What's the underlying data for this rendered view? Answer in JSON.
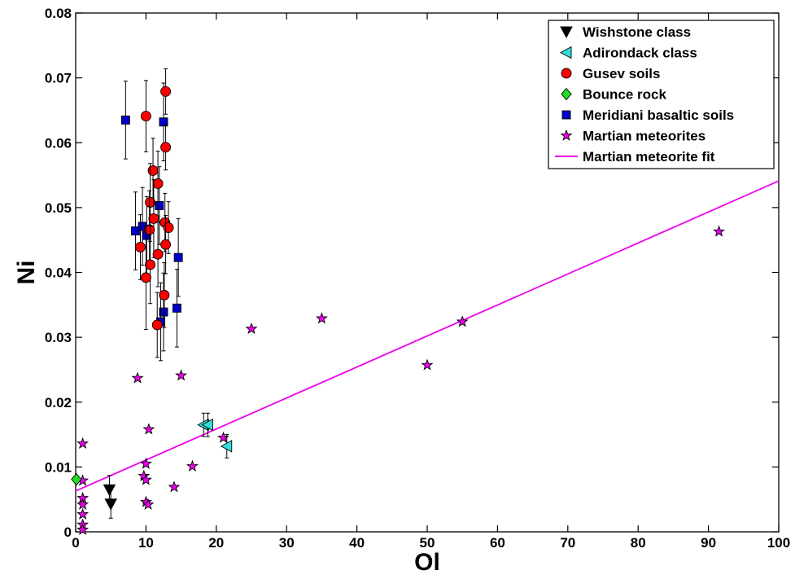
{
  "chart_data": {
    "type": "scatter",
    "xlabel": "Ol",
    "ylabel": "Ni",
    "xlim": [
      0,
      100
    ],
    "ylim": [
      0,
      0.08
    ],
    "xticks": [
      0,
      10,
      20,
      30,
      40,
      50,
      60,
      70,
      80,
      90,
      100
    ],
    "yticks": [
      0,
      0.01,
      0.02,
      0.03,
      0.04,
      0.05,
      0.06,
      0.07,
      0.08
    ],
    "xtick_labels": [
      "0",
      "10",
      "20",
      "30",
      "40",
      "50",
      "60",
      "70",
      "80",
      "90",
      "100"
    ],
    "ytick_labels": [
      "0",
      "0.01",
      "0.02",
      "0.03",
      "0.04",
      "0.05",
      "0.06",
      "0.07",
      "0.08"
    ],
    "grid": false,
    "legend_position": "top-right",
    "series": [
      {
        "name": "Wishstone class",
        "marker": "triangle-down",
        "color": "#000000",
        "points": [
          {
            "x": 4.8,
            "y": 0.0065,
            "err": 0.0022
          },
          {
            "x": 5.0,
            "y": 0.0043,
            "err": 0.0022
          }
        ]
      },
      {
        "name": "Adirondack class",
        "marker": "triangle-left",
        "color": "#33dddd",
        "points": [
          {
            "x": 18.2,
            "y": 0.0165,
            "err": 0.0018
          },
          {
            "x": 18.8,
            "y": 0.0165,
            "err": 0.0018
          },
          {
            "x": 21.5,
            "y": 0.0132,
            "err": 0.0018
          }
        ]
      },
      {
        "name": "Gusev soils",
        "marker": "circle",
        "color": "#ff0000",
        "points": [
          {
            "x": 10.0,
            "y": 0.0641,
            "err": 0.0055
          },
          {
            "x": 12.8,
            "y": 0.0679,
            "err": 0.0035
          },
          {
            "x": 12.8,
            "y": 0.0593,
            "err": 0.0035
          },
          {
            "x": 11.0,
            "y": 0.0557,
            "err": 0.005
          },
          {
            "x": 11.7,
            "y": 0.0537,
            "err": 0.005
          },
          {
            "x": 10.6,
            "y": 0.0508,
            "err": 0.006
          },
          {
            "x": 11.1,
            "y": 0.0483,
            "err": 0.006
          },
          {
            "x": 12.7,
            "y": 0.0477,
            "err": 0.0045
          },
          {
            "x": 13.2,
            "y": 0.0469,
            "err": 0.004
          },
          {
            "x": 10.5,
            "y": 0.0466,
            "err": 0.006
          },
          {
            "x": 9.2,
            "y": 0.0439,
            "err": 0.005
          },
          {
            "x": 12.8,
            "y": 0.0443,
            "err": 0.0045
          },
          {
            "x": 11.7,
            "y": 0.0428,
            "err": 0.005
          },
          {
            "x": 10.6,
            "y": 0.0412,
            "err": 0.006
          },
          {
            "x": 10.0,
            "y": 0.0392,
            "err": 0.008
          },
          {
            "x": 12.6,
            "y": 0.0365,
            "err": 0.005
          },
          {
            "x": 11.6,
            "y": 0.0319,
            "err": 0.005
          }
        ]
      },
      {
        "name": "Bounce rock",
        "marker": "diamond",
        "color": "#22dd22",
        "points": [
          {
            "x": 0.1,
            "y": 0.0081
          }
        ]
      },
      {
        "name": "Meridiani basaltic soils",
        "marker": "square",
        "color": "#0000cc",
        "points": [
          {
            "x": 7.1,
            "y": 0.0635,
            "err": 0.006
          },
          {
            "x": 12.5,
            "y": 0.0632,
            "err": 0.006
          },
          {
            "x": 11.9,
            "y": 0.0503,
            "err": 0.006
          },
          {
            "x": 8.5,
            "y": 0.0464,
            "err": 0.006
          },
          {
            "x": 9.5,
            "y": 0.0471,
            "err": 0.006
          },
          {
            "x": 10.1,
            "y": 0.0457,
            "err": 0.006
          },
          {
            "x": 14.6,
            "y": 0.0423,
            "err": 0.006
          },
          {
            "x": 14.4,
            "y": 0.0345,
            "err": 0.006
          },
          {
            "x": 12.5,
            "y": 0.0339,
            "err": 0.006
          },
          {
            "x": 12.1,
            "y": 0.0324,
            "err": 0.006
          }
        ]
      },
      {
        "name": "Martian meteorites",
        "marker": "star",
        "color": "#ee00ee",
        "points": [
          {
            "x": 91.5,
            "y": 0.0463
          },
          {
            "x": 55.0,
            "y": 0.0324
          },
          {
            "x": 50.0,
            "y": 0.0257
          },
          {
            "x": 35.0,
            "y": 0.0329
          },
          {
            "x": 25.0,
            "y": 0.0313
          },
          {
            "x": 15.0,
            "y": 0.0241
          },
          {
            "x": 8.8,
            "y": 0.0237
          },
          {
            "x": 10.4,
            "y": 0.0158
          },
          {
            "x": 21.0,
            "y": 0.0145
          },
          {
            "x": 1.0,
            "y": 0.0136
          },
          {
            "x": 10.0,
            "y": 0.0105
          },
          {
            "x": 16.6,
            "y": 0.0101
          },
          {
            "x": 9.7,
            "y": 0.0086
          },
          {
            "x": 10.0,
            "y": 0.008
          },
          {
            "x": 14.0,
            "y": 0.0069
          },
          {
            "x": 1.0,
            "y": 0.0079
          },
          {
            "x": 1.0,
            "y": 0.0052
          },
          {
            "x": 1.0,
            "y": 0.0042
          },
          {
            "x": 10.0,
            "y": 0.0046
          },
          {
            "x": 10.3,
            "y": 0.0042
          },
          {
            "x": 1.0,
            "y": 0.0027
          },
          {
            "x": 1.0,
            "y": 0.0011
          },
          {
            "x": 1.0,
            "y": 0.0003
          }
        ]
      },
      {
        "name": "Martian meteorite fit",
        "marker": "line",
        "color": "#ee00ee",
        "line": {
          "x": [
            0,
            100
          ],
          "y": [
            0.0063,
            0.0541
          ]
        }
      }
    ]
  }
}
